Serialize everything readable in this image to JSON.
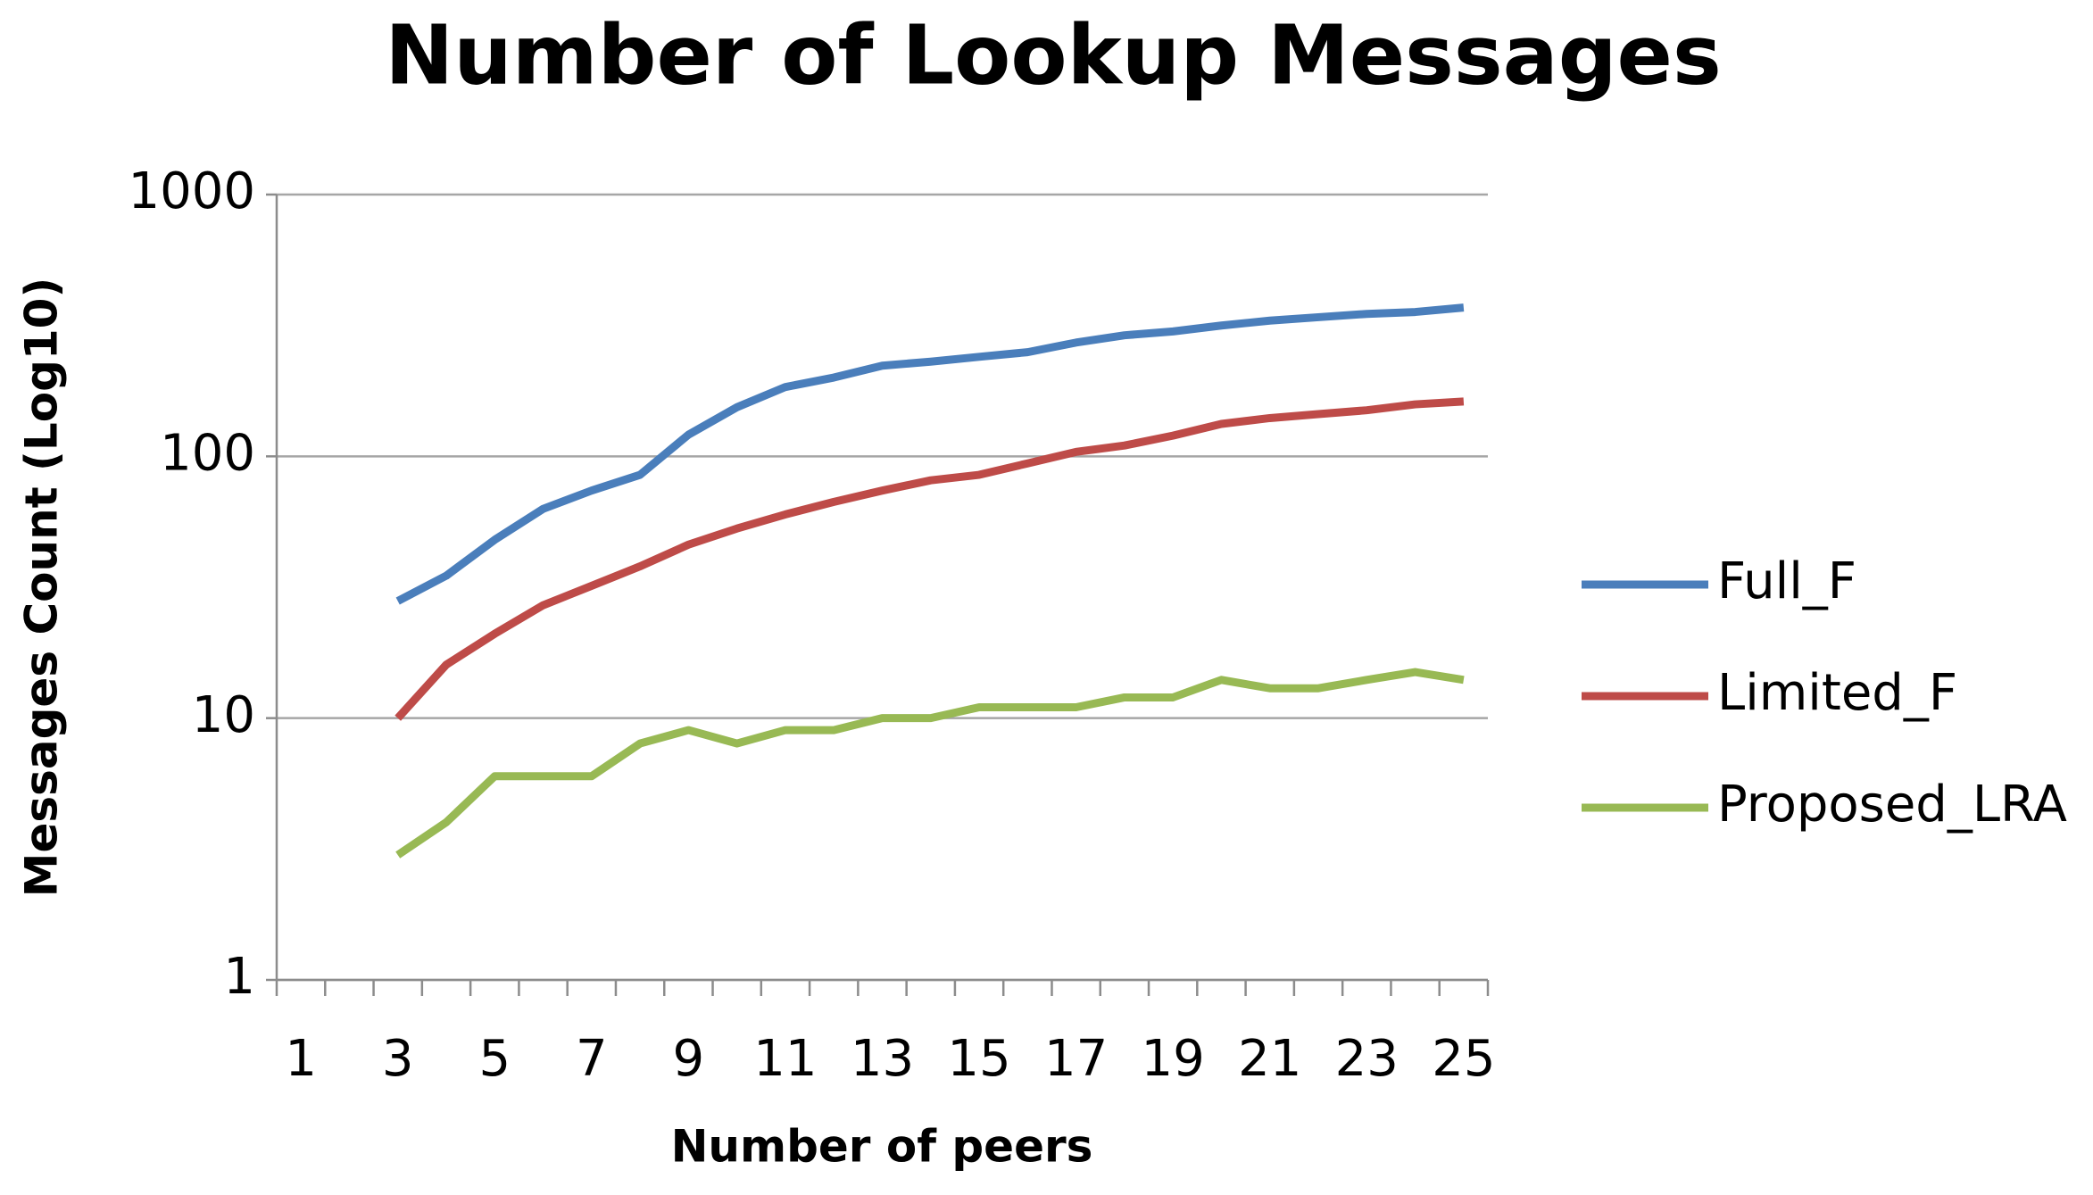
{
  "chart_data": {
    "type": "line",
    "title": "Number of Lookup Messages",
    "x_label": "Number of peers",
    "y_label": "Messages Count (Log10)",
    "categories": [
      1,
      null,
      3,
      null,
      5,
      null,
      7,
      null,
      9,
      null,
      11,
      null,
      13,
      null,
      15,
      null,
      17,
      null,
      19,
      null,
      21,
      null,
      23,
      null,
      25
    ],
    "series": [
      {
        "name": "Full_F",
        "color": "#4a7ebb",
        "values": [
          null,
          null,
          28,
          35,
          48,
          63,
          74,
          85,
          121,
          154,
          184,
          200,
          222,
          230,
          240,
          250,
          272,
          290,
          300,
          316,
          330,
          340,
          350,
          356,
          370
        ]
      },
      {
        "name": "Limited_F",
        "color": "#be4b48",
        "values": [
          null,
          null,
          10,
          16,
          21,
          27,
          32,
          38,
          46,
          53,
          60,
          67,
          74,
          81,
          85,
          94,
          104,
          110,
          120,
          133,
          140,
          145,
          150,
          158,
          162
        ]
      },
      {
        "name": "Proposed_LRA",
        "color": "#98b954",
        "values": [
          null,
          null,
          3,
          4,
          6,
          6,
          6,
          8,
          9,
          8,
          9,
          9,
          10,
          10,
          11,
          11,
          11,
          12,
          12,
          14,
          13,
          13,
          14,
          15,
          14
        ]
      }
    ],
    "ylim": [
      1,
      1000
    ],
    "yticks": [
      1,
      10,
      100,
      1000
    ],
    "log_scale": true,
    "grid": true,
    "legend": "right"
  }
}
